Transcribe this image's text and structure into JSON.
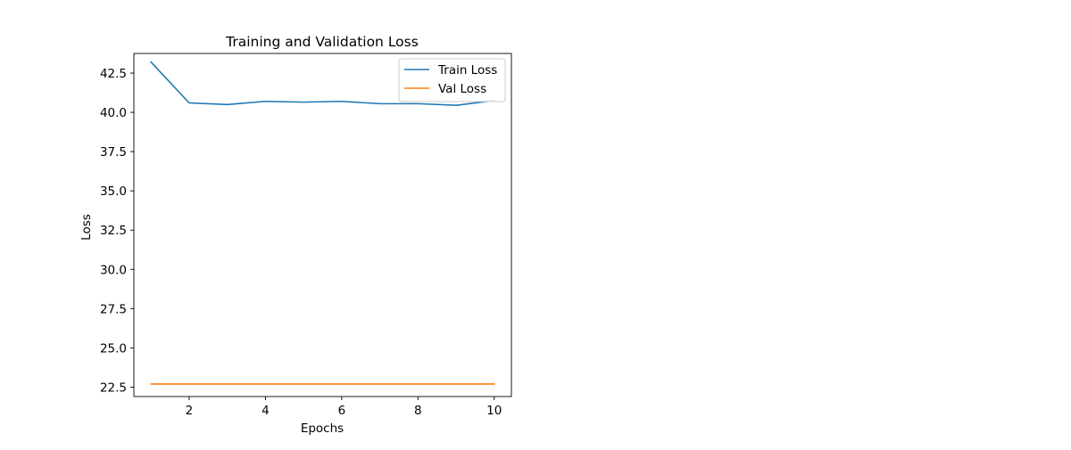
{
  "chart_data": {
    "type": "line",
    "title": "Training and Validation Loss",
    "xlabel": "Epochs",
    "ylabel": "Loss",
    "x": [
      1,
      2,
      3,
      4,
      5,
      6,
      7,
      8,
      9,
      10
    ],
    "xlim": [
      0.55,
      10.45
    ],
    "ylim": [
      21.9,
      43.75
    ],
    "xticks": [
      2,
      4,
      6,
      8,
      10
    ],
    "xtick_labels": [
      "2",
      "4",
      "6",
      "8",
      "10"
    ],
    "yticks": [
      22.5,
      25.0,
      27.5,
      30.0,
      32.5,
      35.0,
      37.5,
      40.0,
      42.5
    ],
    "ytick_labels": [
      "22.5",
      "25.0",
      "27.5",
      "30.0",
      "32.5",
      "35.0",
      "37.5",
      "40.0",
      "42.5"
    ],
    "grid": false,
    "legend_position": "top-right",
    "series": [
      {
        "name": "Train Loss",
        "color": "#1f77b4",
        "values": [
          43.2,
          40.6,
          40.5,
          40.7,
          40.65,
          40.7,
          40.55,
          40.55,
          40.45,
          40.75
        ]
      },
      {
        "name": "Val Loss",
        "color": "#ff7f0e",
        "values": [
          22.7,
          22.7,
          22.7,
          22.7,
          22.7,
          22.7,
          22.7,
          22.7,
          22.7,
          22.7
        ]
      }
    ]
  }
}
